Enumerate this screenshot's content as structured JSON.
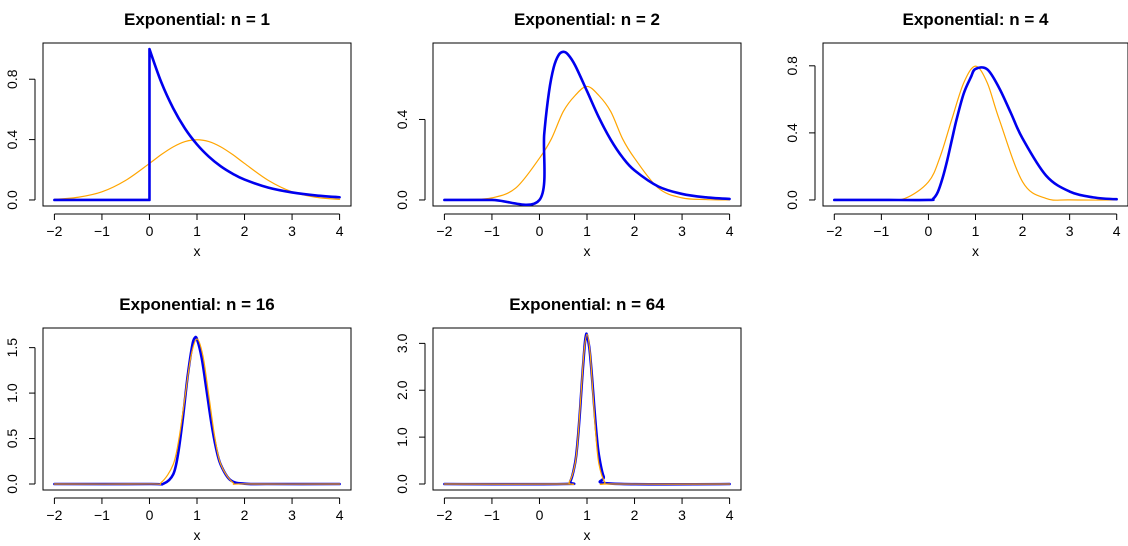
{
  "figure": {
    "colors": {
      "exact_density": "#0000ee",
      "normal_approximation": "#ffa500",
      "axes": "#000000",
      "background": "#ffffff"
    }
  },
  "chart_data": [
    {
      "type": "line",
      "title": "Exponential: n = 1",
      "n": 1,
      "xlabel": "x",
      "ylabel": "",
      "xlim": [
        -2,
        4
      ],
      "ylim": [
        0,
        1
      ],
      "xticks": [
        -2,
        -1,
        0,
        1,
        2,
        3,
        4
      ],
      "xtick_labels": [
        "−2",
        "−1",
        "0",
        "1",
        "2",
        "3",
        "4"
      ],
      "yticks": [
        0,
        0.4,
        0.8
      ],
      "ytick_labels": [
        "0.0",
        "0.4",
        "0.8"
      ],
      "series": [
        {
          "color": "#0000ee",
          "x": [
            -2,
            -1,
            0,
            0,
            0.25,
            0.5,
            0.75,
            1,
            1.25,
            1.5,
            1.75,
            2,
            2.5,
            3,
            3.5,
            4
          ],
          "y": [
            0,
            0,
            0,
            1,
            0.779,
            0.607,
            0.472,
            0.368,
            0.287,
            0.223,
            0.174,
            0.135,
            0.082,
            0.05,
            0.03,
            0.018
          ]
        },
        {
          "color": "#ffa500",
          "x": [
            -2,
            -1.5,
            -1,
            -0.5,
            0,
            0.25,
            0.5,
            0.75,
            1,
            1.25,
            1.5,
            1.75,
            2,
            2.5,
            3,
            3.5,
            4
          ],
          "y": [
            0.004,
            0.018,
            0.054,
            0.13,
            0.242,
            0.301,
            0.352,
            0.387,
            0.399,
            0.387,
            0.352,
            0.301,
            0.242,
            0.13,
            0.054,
            0.018,
            0.004
          ]
        }
      ]
    },
    {
      "type": "line",
      "title": "Exponential: n = 2",
      "n": 2,
      "xlabel": "x",
      "ylabel": "",
      "xlim": [
        -2,
        4
      ],
      "ylim": [
        0,
        0.75
      ],
      "xticks": [
        -2,
        -1,
        0,
        1,
        2,
        3,
        4
      ],
      "xtick_labels": [
        "−2",
        "−1",
        "0",
        "1",
        "2",
        "3",
        "4"
      ],
      "yticks": [
        0,
        0.4
      ],
      "ytick_labels": [
        "0.0",
        "0.4"
      ],
      "series": [
        {
          "color": "#0000ee",
          "x": [
            -2,
            -1,
            0,
            0.1,
            0.2,
            0.3,
            0.4,
            0.5,
            0.6,
            0.75,
            1,
            1.25,
            1.5,
            1.75,
            2,
            2.5,
            3,
            3.5,
            4
          ],
          "y": [
            0,
            0,
            0,
            0.327,
            0.536,
            0.659,
            0.719,
            0.736,
            0.723,
            0.669,
            0.541,
            0.41,
            0.299,
            0.211,
            0.147,
            0.067,
            0.03,
            0.013,
            0.005
          ]
        },
        {
          "color": "#ffa500",
          "x": [
            -2,
            -1.5,
            -1,
            -0.5,
            0,
            0.25,
            0.5,
            0.75,
            1,
            1.25,
            1.5,
            1.75,
            2,
            2.5,
            3,
            3.5,
            4
          ],
          "y": [
            0.0001,
            0.0021,
            0.0103,
            0.059,
            0.2076,
            0.3033,
            0.4393,
            0.5191,
            0.5642,
            0.5191,
            0.4393,
            0.3033,
            0.2076,
            0.059,
            0.0103,
            0.0021,
            0.0001
          ]
        }
      ]
    },
    {
      "type": "line",
      "title": "Exponential: n = 4",
      "n": 4,
      "xlabel": "x",
      "ylabel": "",
      "xlim": [
        -2,
        4
      ],
      "ylim": [
        0,
        0.9
      ],
      "xticks": [
        -2,
        -1,
        0,
        1,
        2,
        3,
        4
      ],
      "xtick_labels": [
        "−2",
        "−1",
        "0",
        "1",
        "2",
        "3",
        "4"
      ],
      "yticks": [
        0,
        0.4,
        0.8
      ],
      "ytick_labels": [
        "0.0",
        "0.4",
        "0.8"
      ],
      "series": [
        {
          "color": "#0000ee",
          "x": [
            -2,
            -1,
            0,
            0.1,
            0.2,
            0.3,
            0.4,
            0.5,
            0.6,
            0.75,
            0.9,
            1,
            1.25,
            1.5,
            1.75,
            2,
            2.5,
            3,
            3.5,
            4
          ],
          "y": [
            0,
            0,
            0,
            0.0072,
            0.0479,
            0.1301,
            0.2374,
            0.3609,
            0.4822,
            0.6349,
            0.7311,
            0.7815,
            0.7786,
            0.6693,
            0.5193,
            0.3664,
            0.1452,
            0.0503,
            0.0156,
            0.0045
          ]
        },
        {
          "color": "#ffa500",
          "x": [
            -2,
            -1,
            -0.5,
            0,
            0.25,
            0.5,
            0.75,
            1,
            1.25,
            1.5,
            2,
            2.5,
            3,
            4
          ],
          "y": [
            0,
            0.0003,
            0.0089,
            0.108,
            0.259,
            0.4839,
            0.6985,
            0.7979,
            0.6985,
            0.4839,
            0.108,
            0.0089,
            0.0003,
            0
          ]
        }
      ]
    },
    {
      "type": "line",
      "title": "Exponential: n = 16",
      "n": 16,
      "xlabel": "x",
      "ylabel": "",
      "xlim": [
        -2,
        4
      ],
      "ylim": [
        0,
        1.65
      ],
      "xticks": [
        -2,
        -1,
        0,
        1,
        2,
        3,
        4
      ],
      "xtick_labels": [
        "−2",
        "−1",
        "0",
        "1",
        "2",
        "3",
        "4"
      ],
      "yticks": [
        0,
        0.5,
        1,
        1.5
      ],
      "ytick_labels": [
        "0.0",
        "0.5",
        "1.0",
        "1.5"
      ],
      "series": [
        {
          "color": "#0000ee",
          "x": [
            -2,
            0,
            0.3,
            0.5,
            0.6,
            0.7,
            0.8,
            0.9,
            0.95,
            1,
            1.1,
            1.2,
            1.3,
            1.4,
            1.5,
            1.7,
            2,
            2.5,
            4
          ],
          "y": [
            0,
            0,
            0.005,
            0.107,
            0.325,
            0.712,
            1.172,
            1.524,
            1.605,
            1.593,
            1.383,
            1.035,
            0.679,
            0.396,
            0.211,
            0.044,
            0.003,
            0,
            0
          ]
        },
        {
          "color": "#ffa500",
          "x": [
            -2,
            0,
            0.25,
            0.5,
            0.625,
            0.75,
            0.875,
            1,
            1.125,
            1.25,
            1.375,
            1.5,
            1.75,
            2,
            4
          ],
          "y": [
            0,
            0.0005,
            0.0177,
            0.2159,
            0.5127,
            0.9679,
            1.41,
            1.5958,
            1.41,
            0.9679,
            0.5127,
            0.2159,
            0.0177,
            0.0005,
            0
          ]
        }
      ]
    },
    {
      "type": "line",
      "title": "Exponential: n = 64",
      "n": 64,
      "xlabel": "x",
      "ylabel": "",
      "xlim": [
        -2,
        4
      ],
      "ylim": [
        0,
        3.2
      ],
      "xticks": [
        -2,
        -1,
        0,
        1,
        2,
        3,
        4
      ],
      "xtick_labels": [
        "−2",
        "−1",
        "0",
        "1",
        "2",
        "3",
        "4"
      ],
      "yticks": [
        0,
        1,
        2,
        3
      ],
      "ytick_labels": [
        "0.0",
        "1.0",
        "2.0",
        "3.0"
      ],
      "series": [
        {
          "color": "#0000ee",
          "x": [
            -2,
            0.5,
            0.65,
            0.75,
            0.8,
            0.85,
            0.9,
            0.95,
            0.98,
            1,
            1.05,
            1.1,
            1.15,
            1.2,
            1.25,
            1.35,
            1.5,
            4
          ],
          "y": [
            0,
            0,
            0.06,
            0.45,
            0.88,
            1.52,
            2.28,
            2.95,
            3.18,
            3.17,
            2.9,
            2.35,
            1.68,
            1.07,
            0.62,
            0.16,
            0.01,
            0
          ]
        },
        {
          "color": "#ffa500",
          "x": [
            -2,
            0.5,
            0.625,
            0.75,
            0.8125,
            0.875,
            0.9375,
            1,
            1.0625,
            1.125,
            1.1875,
            1.25,
            1.375,
            1.5,
            4
          ],
          "y": [
            0,
            0,
            0.035,
            0.432,
            1.026,
            1.936,
            2.82,
            3.192,
            2.82,
            1.936,
            1.026,
            0.432,
            0.035,
            0,
            0
          ]
        }
      ]
    }
  ]
}
